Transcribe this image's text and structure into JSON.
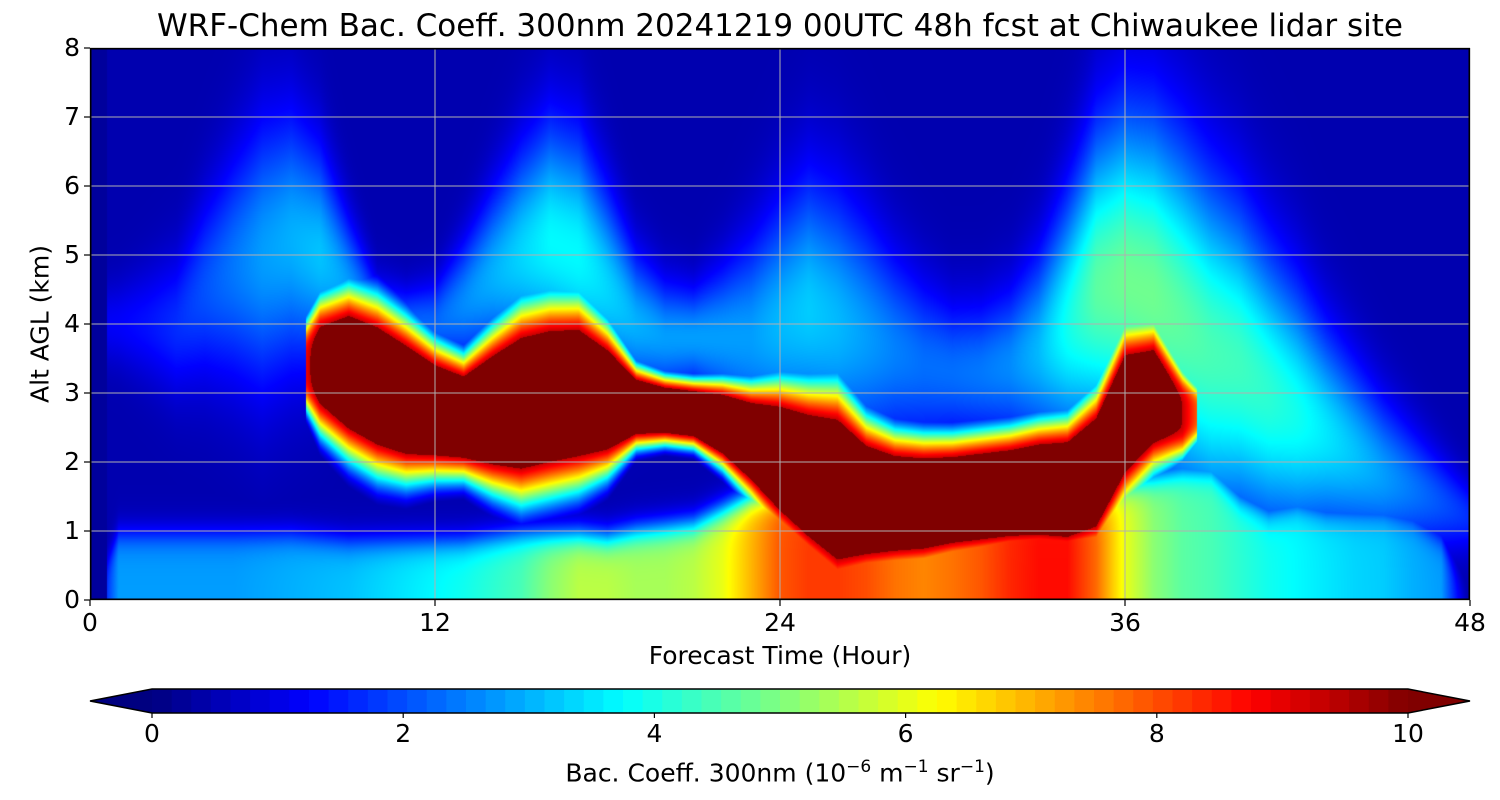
{
  "chart_data": {
    "type": "heatmap",
    "title": "WRF-Chem Bac. Coeff. 300nm  20241219 00UTC 48h fcst at Chiwaukee lidar site",
    "xlabel": "Forecast Time (Hour)",
    "ylabel": "Alt AGL (km)",
    "xlim": [
      0,
      48
    ],
    "ylim": [
      0,
      8
    ],
    "x_ticks": [
      "0",
      "12",
      "24",
      "36",
      "48"
    ],
    "y_ticks": [
      "0",
      "1",
      "2",
      "3",
      "4",
      "5",
      "6",
      "7",
      "8"
    ],
    "grid": true,
    "colorscale": "jet",
    "colorbar": {
      "range": [
        0,
        10
      ],
      "ticks": [
        "0",
        "2",
        "4",
        "6",
        "8",
        "10"
      ],
      "extend": "both",
      "label_main": "Bac. Coeff. 300nm  (10",
      "label_exp1": "−6",
      "label_unit1": " m",
      "label_exp2": "−1",
      "label_unit2": " sr",
      "label_exp3": "−1",
      "label_end": ")"
    },
    "x": [
      0,
      1,
      2,
      3,
      4,
      5,
      6,
      7,
      8,
      9,
      10,
      11,
      12,
      13,
      14,
      15,
      16,
      17,
      18,
      19,
      20,
      21,
      22,
      23,
      24,
      25,
      26,
      27,
      28,
      29,
      30,
      31,
      32,
      33,
      34,
      35,
      36,
      37,
      38,
      39,
      40,
      41,
      42,
      43,
      44,
      45,
      46,
      47,
      48
    ],
    "altitude_bands_km": {
      "low_layer_top": [
        0.0,
        0.95,
        0.95,
        0.95,
        0.95,
        0.95,
        0.95,
        0.95,
        0.9,
        0.85,
        0.85,
        0.85,
        0.85,
        0.85,
        0.9,
        0.95,
        0.95,
        0.95,
        0.9,
        1.0,
        1.05,
        1.1,
        1.3,
        1.5,
        1.6,
        1.6,
        1.6,
        1.6,
        1.6,
        1.6,
        1.6,
        1.6,
        1.6,
        1.6,
        1.6,
        1.6,
        1.7,
        1.8,
        1.9,
        1.9,
        1.5,
        1.3,
        1.4,
        1.3,
        1.3,
        1.3,
        1.2,
        0.9,
        0.0
      ],
      "low_layer_value": [
        0.3,
        3.0,
        3.0,
        3.0,
        3.0,
        3.0,
        3.1,
        3.2,
        3.3,
        3.4,
        3.6,
        3.8,
        4.0,
        4.2,
        4.5,
        4.8,
        5.5,
        6.0,
        6.0,
        5.8,
        5.8,
        6.0,
        6.5,
        7.5,
        8.5,
        8.8,
        8.8,
        8.6,
        8.2,
        8.0,
        8.2,
        8.5,
        9.0,
        9.3,
        9.3,
        8.3,
        6.5,
        5.5,
        5.0,
        4.8,
        4.5,
        4.2,
        4.0,
        3.8,
        3.6,
        3.5,
        3.2,
        3.0,
        0.3
      ],
      "plume_center": [
        null,
        null,
        null,
        null,
        null,
        null,
        null,
        null,
        3.4,
        3.3,
        3.1,
        2.9,
        2.75,
        2.65,
        2.75,
        2.85,
        2.95,
        3.0,
        2.9,
        2.8,
        2.75,
        2.7,
        2.55,
        2.3,
        2.05,
        1.8,
        1.6,
        1.45,
        1.4,
        1.4,
        1.45,
        1.5,
        1.55,
        1.6,
        1.6,
        1.85,
        2.7,
        2.95,
        2.7,
        null,
        null,
        null,
        null,
        null,
        null,
        null,
        null,
        null,
        null
      ],
      "plume_halfwidth": [
        0,
        0,
        0,
        0,
        0,
        0,
        0,
        0.3,
        1.0,
        1.25,
        1.3,
        1.2,
        1.0,
        0.9,
        1.2,
        1.45,
        1.45,
        1.4,
        1.1,
        0.6,
        0.5,
        0.5,
        0.65,
        0.85,
        1.15,
        1.35,
        1.55,
        1.2,
        1.05,
        1.0,
        0.95,
        0.95,
        0.95,
        1.0,
        1.05,
        1.2,
        1.3,
        1.1,
        0.65,
        0.2,
        0,
        0,
        0,
        0,
        0,
        0,
        0,
        0,
        0
      ],
      "plume_peak": [
        0,
        0,
        0,
        0,
        0,
        0,
        0,
        8.0,
        11.0,
        12.0,
        12.0,
        12.0,
        12.0,
        12.0,
        12.0,
        12.0,
        12.0,
        12.0,
        12.0,
        12.0,
        12.0,
        12.0,
        12.0,
        12.0,
        12.0,
        12.0,
        12.0,
        12.0,
        12.0,
        12.0,
        12.0,
        12.0,
        12.0,
        12.0,
        12.0,
        12.0,
        12.0,
        11.5,
        10.0,
        7.0,
        0,
        0,
        0,
        0,
        0,
        0,
        0,
        0,
        0
      ],
      "aloft_center": [
        4.0,
        4.0,
        4.0,
        4.0,
        4.5,
        4.8,
        5.0,
        5.2,
        5.0,
        4.5,
        4.0,
        4.0,
        4.0,
        4.3,
        4.7,
        5.0,
        5.2,
        5.0,
        4.5,
        4.0,
        3.8,
        3.8,
        3.8,
        3.8,
        4.0,
        4.2,
        4.0,
        3.8,
        3.6,
        3.4,
        3.3,
        3.3,
        3.4,
        3.6,
        4.0,
        4.5,
        4.6,
        4.4,
        4.0,
        3.6,
        3.4,
        3.0,
        2.7,
        2.4,
        2.1,
        1.8,
        1.6,
        1.4,
        1.2
      ],
      "aloft_halfwidth": [
        0.5,
        0.6,
        0.8,
        1.0,
        1.3,
        1.6,
        1.9,
        1.8,
        1.5,
        1.0,
        0.6,
        0.5,
        0.6,
        0.9,
        1.2,
        1.5,
        1.7,
        1.7,
        1.4,
        1.0,
        0.8,
        0.7,
        1.0,
        1.4,
        1.7,
        1.9,
        1.9,
        1.7,
        1.4,
        1.2,
        1.0,
        1.0,
        1.1,
        1.4,
        1.8,
        2.2,
        2.4,
        2.5,
        2.5,
        2.4,
        2.2,
        2.0,
        1.8,
        1.5,
        1.3,
        1.1,
        0.9,
        0.7,
        0.5
      ],
      "aloft_peak": [
        1.2,
        1.3,
        1.5,
        1.8,
        2.2,
        2.6,
        3.0,
        3.2,
        3.4,
        3.0,
        2.6,
        2.4,
        2.4,
        2.8,
        3.2,
        3.6,
        4.0,
        4.0,
        3.6,
        3.2,
        3.0,
        3.0,
        3.0,
        3.0,
        3.3,
        3.5,
        3.3,
        3.0,
        2.7,
        2.5,
        2.5,
        2.6,
        2.8,
        3.3,
        4.2,
        5.0,
        5.2,
        5.2,
        5.0,
        4.8,
        4.7,
        4.5,
        4.2,
        3.8,
        3.4,
        3.0,
        2.6,
        2.2,
        1.8
      ]
    },
    "background_value": 0.5
  }
}
